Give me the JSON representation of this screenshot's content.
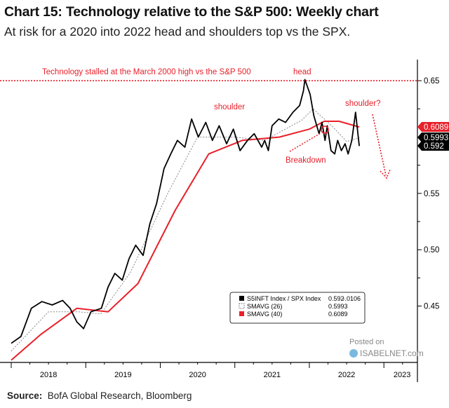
{
  "title": "Chart 15: Technology relative to the S&P 500: Weekly chart",
  "subtitle": "At risk for a 2020 into 2022 head and shoulders top vs the SPX.",
  "source_label": "Source:",
  "source_text": "BofA Global Research, Bloomberg",
  "watermark": {
    "line1": "Posted on",
    "line2": "ISABELNET.com"
  },
  "colors": {
    "price": "#000000",
    "sma26": "#888888",
    "sma40": "#e8202a",
    "annotation": "#e8202a"
  },
  "chart_data": {
    "type": "line",
    "title": "Chart 15: Technology relative to the S&P 500: Weekly chart",
    "xlim": [
      2018.0,
      2023.45
    ],
    "ylim": [
      0.4,
      0.6625
    ],
    "x_ticks": [
      "2018",
      "2019",
      "2020",
      "2021",
      "2022",
      "2023"
    ],
    "y_ticks": [
      0.45,
      0.5,
      0.55,
      0.6,
      0.65
    ],
    "y_tick_labels": [
      "0.45",
      "0.50",
      "0.55",
      "0.60",
      "0.65"
    ],
    "y_axis_side": "right",
    "grid": false,
    "legend_placement": "bottom-right",
    "legend": [
      {
        "label": "S5INFT Index / SPX Index",
        "value": "0.592",
        "change": "-.0106",
        "swatch": "black-solid"
      },
      {
        "label": "SMAVG (26)",
        "value": "0.5993",
        "swatch": "dotted"
      },
      {
        "label": "SMAVG (40)",
        "value": "0.6089",
        "swatch": "red-solid"
      }
    ],
    "last_value_tags": [
      {
        "label": "0.6089",
        "value": 0.6089,
        "color": "#e8202a"
      },
      {
        "label": "0.5993",
        "value": 0.5993,
        "color": "#000000"
      },
      {
        "label": "0.592",
        "value": 0.592,
        "color": "#000000"
      }
    ],
    "annotations": {
      "hline_value": 0.65,
      "hline_text": "Technology stalled at the March 2000 high vs the S&P 500",
      "head": "head",
      "left_shoulder": "shoulder",
      "right_shoulder": "shoulder?",
      "breakdown": "Breakdown"
    },
    "series": [
      {
        "name": "S5INFT Index / SPX Index",
        "color": "#000000",
        "x": [
          2018.0,
          2018.13,
          2018.27,
          2018.41,
          2018.55,
          2018.69,
          2018.79,
          2018.88,
          2018.97,
          2019.07,
          2019.21,
          2019.3,
          2019.39,
          2019.49,
          2019.58,
          2019.67,
          2019.77,
          2019.86,
          2019.95,
          2020.05,
          2020.14,
          2020.23,
          2020.33,
          2020.42,
          2020.51,
          2020.61,
          2020.7,
          2020.79,
          2020.89,
          2020.98,
          2021.07,
          2021.17,
          2021.26,
          2021.36,
          2021.4,
          2021.45,
          2021.5,
          2021.59,
          2021.68,
          2021.78,
          2021.87,
          2021.92,
          2021.94,
          2022.01,
          2022.06,
          2022.13,
          2022.17,
          2022.21,
          2022.24,
          2022.29,
          2022.34,
          2022.38,
          2022.43,
          2022.48,
          2022.52,
          2022.57,
          2022.62,
          2022.67
        ],
        "y": [
          0.417,
          0.423,
          0.448,
          0.454,
          0.451,
          0.455,
          0.448,
          0.436,
          0.43,
          0.445,
          0.448,
          0.467,
          0.479,
          0.473,
          0.492,
          0.504,
          0.495,
          0.523,
          0.541,
          0.572,
          0.585,
          0.597,
          0.591,
          0.616,
          0.6,
          0.613,
          0.597,
          0.61,
          0.594,
          0.607,
          0.588,
          0.597,
          0.603,
          0.591,
          0.597,
          0.588,
          0.61,
          0.616,
          0.613,
          0.622,
          0.628,
          0.641,
          0.651,
          0.638,
          0.619,
          0.603,
          0.613,
          0.597,
          0.61,
          0.588,
          0.585,
          0.597,
          0.588,
          0.594,
          0.585,
          0.597,
          0.622,
          0.592
        ]
      },
      {
        "name": "SMAVG (26)",
        "color": "#888888",
        "x": [
          2018.0,
          2018.5,
          2018.9,
          2019.2,
          2019.6,
          2020.1,
          2020.5,
          2021.0,
          2021.4,
          2021.9,
          2022.05,
          2022.3,
          2022.5,
          2022.67
        ],
        "y": [
          0.41,
          0.445,
          0.445,
          0.443,
          0.48,
          0.55,
          0.6,
          0.6,
          0.597,
          0.615,
          0.625,
          0.61,
          0.596,
          0.5993
        ]
      },
      {
        "name": "SMAVG (40)",
        "color": "#e8202a",
        "x": [
          2018.0,
          2018.4,
          2018.88,
          2019.3,
          2019.7,
          2020.2,
          2020.65,
          2021.1,
          2021.6,
          2022.0,
          2022.2,
          2022.4,
          2022.67
        ],
        "y": [
          0.402,
          0.425,
          0.448,
          0.445,
          0.47,
          0.535,
          0.585,
          0.597,
          0.6,
          0.607,
          0.614,
          0.614,
          0.6089
        ]
      }
    ]
  }
}
